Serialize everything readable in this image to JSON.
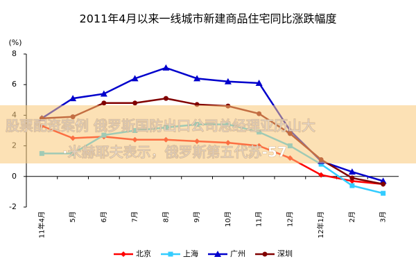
{
  "chart_data": {
    "type": "line",
    "title": "2011年4月以来一线城市新建商品住宅同比涨跌幅度",
    "y_unit": "(%)",
    "categories": [
      "11年4月",
      "5月",
      "6月",
      "7月",
      "8月",
      "9月",
      "10月",
      "11月",
      "12月",
      "12年1月",
      "2月",
      "3月"
    ],
    "series": [
      {
        "name": "北京",
        "color": "#ff0000",
        "marker": "diamond",
        "values": [
          3.3,
          2.5,
          2.6,
          2.4,
          2.4,
          2.3,
          2.2,
          2.0,
          1.2,
          0.1,
          -0.3,
          -0.5
        ]
      },
      {
        "name": "上海",
        "color": "#33ccff",
        "marker": "square",
        "values": [
          1.5,
          1.5,
          2.7,
          3.0,
          3.2,
          3.4,
          3.4,
          2.9,
          2.0,
          0.8,
          -0.6,
          -1.1
        ]
      },
      {
        "name": "广州",
        "color": "#0000cc",
        "marker": "triangle",
        "values": [
          3.8,
          5.1,
          5.4,
          6.4,
          7.1,
          6.4,
          6.2,
          6.1,
          3.0,
          1.0,
          0.3,
          -0.3
        ]
      },
      {
        "name": "深圳",
        "color": "#800000",
        "marker": "circle",
        "values": [
          3.8,
          3.9,
          4.8,
          4.8,
          5.1,
          4.7,
          4.6,
          4.1,
          2.8,
          1.1,
          -0.1,
          -0.5
        ]
      }
    ],
    "ylim": [
      -2,
      8
    ],
    "yticks": [
      -2,
      0,
      2,
      4,
      6,
      8
    ],
    "legend": "bottom"
  },
  "overlay_text": [
    "股票配资案例 俄罗斯国防出口公司总经理亚历山大",
    "·米赫耶夫表示，俄罗斯第五代苏-57"
  ]
}
